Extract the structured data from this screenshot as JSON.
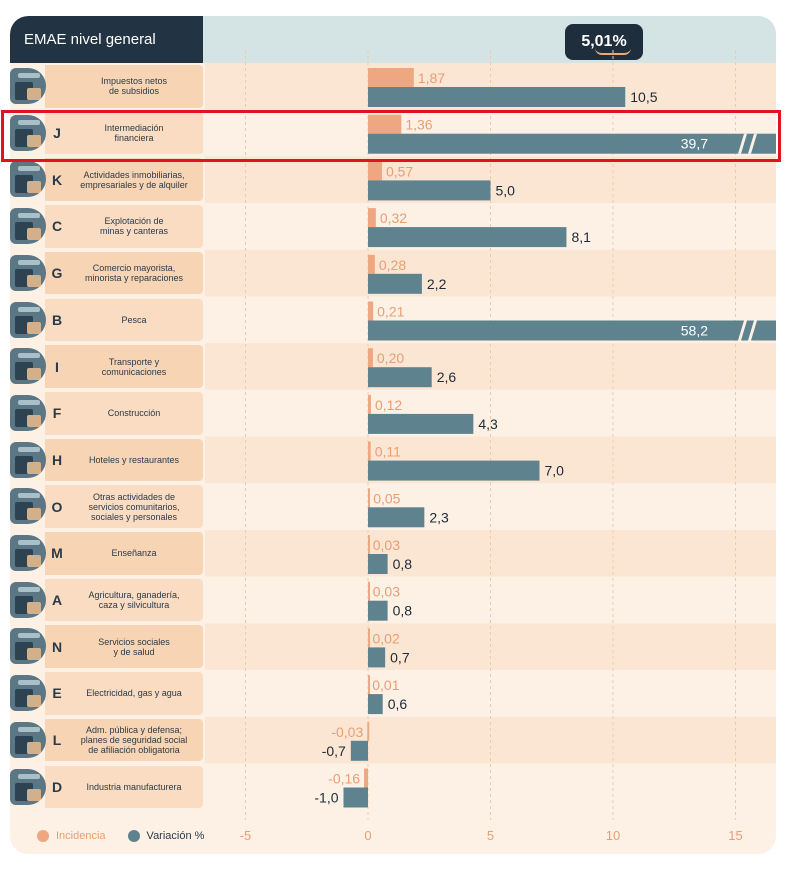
{
  "header": {
    "title": "EMAE nivel general",
    "total": "5,01%"
  },
  "colors": {
    "incidencia": "#eea780",
    "variacion": "#5f828f",
    "incidencia_text": "#e99e72",
    "dark": "#223344",
    "highlight": "#e0141e"
  },
  "legend": {
    "incidencia": "Incidencia",
    "variacion": "Variación %"
  },
  "chart_data": {
    "type": "bar",
    "orientation": "horizontal",
    "xlim": [
      -5,
      16
    ],
    "x_ticks": [
      "-5",
      "0",
      "5",
      "10",
      "15"
    ],
    "x_tick_values": [
      -5,
      0,
      5,
      10,
      15
    ],
    "grid": true,
    "legend_position": "bottom-left",
    "highlighted_category": "J",
    "rows": [
      {
        "letter": "",
        "label": "Impuestos netos\nde subsidios",
        "incidencia": 1.87,
        "incidencia_label": "1,87",
        "variacion": 10.5,
        "variacion_label": "10,5",
        "broken": false,
        "icon": "tax-icon"
      },
      {
        "letter": "J",
        "label": "Intermediación\nfinanciera",
        "incidencia": 1.36,
        "incidencia_label": "1,36",
        "variacion": 39.7,
        "variacion_label": "39,7",
        "broken": true,
        "icon": "bank-icon"
      },
      {
        "letter": "K",
        "label": "Actividades inmobiliarias,\nempresariales y de alquiler",
        "incidencia": 0.57,
        "incidencia_label": "0,57",
        "variacion": 5.0,
        "variacion_label": "5,0",
        "broken": false,
        "icon": "real-estate-icon"
      },
      {
        "letter": "C",
        "label": "Explotación de\nminas y canteras",
        "incidencia": 0.32,
        "incidencia_label": "0,32",
        "variacion": 8.1,
        "variacion_label": "8,1",
        "broken": false,
        "icon": "oil-pump-icon"
      },
      {
        "letter": "G",
        "label": "Comercio mayorista,\nminorista y reparaciones",
        "incidencia": 0.28,
        "incidencia_label": "0,28",
        "variacion": 2.2,
        "variacion_label": "2,2",
        "broken": false,
        "icon": "store-icon"
      },
      {
        "letter": "B",
        "label": "Pesca",
        "incidencia": 0.21,
        "incidencia_label": "0,21",
        "variacion": 58.2,
        "variacion_label": "58,2",
        "broken": true,
        "icon": "fish-icon"
      },
      {
        "letter": "I",
        "label": "Transporte y\ncomunicaciones",
        "incidencia": 0.2,
        "incidencia_label": "0,20",
        "variacion": 2.6,
        "variacion_label": "2,6",
        "broken": false,
        "icon": "transport-icon"
      },
      {
        "letter": "F",
        "label": "Construcción",
        "incidencia": 0.12,
        "incidencia_label": "0,12",
        "variacion": 4.3,
        "variacion_label": "4,3",
        "broken": false,
        "icon": "construction-icon"
      },
      {
        "letter": "H",
        "label": "Hoteles y restaurantes",
        "incidencia": 0.11,
        "incidencia_label": "0,11",
        "variacion": 7.0,
        "variacion_label": "7,0",
        "broken": false,
        "icon": "hotel-icon"
      },
      {
        "letter": "O",
        "label": "Otras actividades de\nservicios comunitarios,\nsociales y personales",
        "incidencia": 0.05,
        "incidencia_label": "0,05",
        "variacion": 2.3,
        "variacion_label": "2,3",
        "broken": false,
        "icon": "community-icon"
      },
      {
        "letter": "M",
        "label": "Enseñanza",
        "incidencia": 0.03,
        "incidencia_label": "0,03",
        "variacion": 0.8,
        "variacion_label": "0,8",
        "broken": false,
        "icon": "education-icon"
      },
      {
        "letter": "A",
        "label": "Agricultura, ganadería,\ncaza y silvicultura",
        "incidencia": 0.03,
        "incidencia_label": "0,03",
        "variacion": 0.8,
        "variacion_label": "0,8",
        "broken": false,
        "icon": "agriculture-icon"
      },
      {
        "letter": "N",
        "label": "Servicios sociales\ny de salud",
        "incidencia": 0.02,
        "incidencia_label": "0,02",
        "variacion": 0.7,
        "variacion_label": "0,7",
        "broken": false,
        "icon": "health-icon"
      },
      {
        "letter": "E",
        "label": "Electricidad, gas y agua",
        "incidencia": 0.01,
        "incidencia_label": "0,01",
        "variacion": 0.6,
        "variacion_label": "0,6",
        "broken": false,
        "icon": "utilities-icon"
      },
      {
        "letter": "L",
        "label": "Adm. pública y defensa;\nplanes de seguridad social\nde afiliación obligatoria",
        "incidencia": -0.03,
        "incidencia_label": "-0,03",
        "variacion": -0.7,
        "variacion_label": "-0,7",
        "broken": false,
        "icon": "government-icon"
      },
      {
        "letter": "D",
        "label": "Industria manufacturera",
        "incidencia": -0.16,
        "incidencia_label": "-0,16",
        "variacion": -1.0,
        "variacion_label": "-1,0",
        "broken": false,
        "icon": "gears-icon"
      }
    ]
  }
}
